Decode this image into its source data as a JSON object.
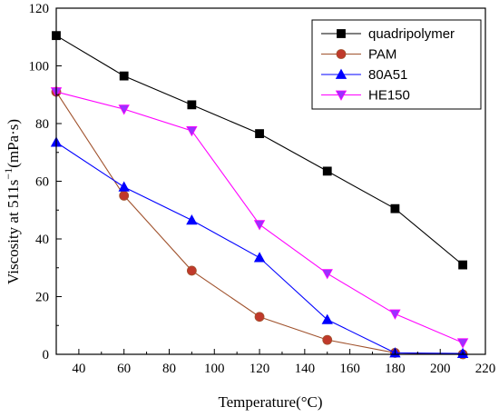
{
  "chart_data": {
    "type": "line",
    "title": "",
    "xlabel": "Temperature(°C)",
    "ylabel_main": "Viscosity at 511s",
    "ylabel_sup": "−1",
    "ylabel_tail": "(mPa·s)",
    "xlim": [
      30,
      220
    ],
    "ylim": [
      0,
      120
    ],
    "x_ticks": [
      40,
      60,
      80,
      100,
      120,
      140,
      160,
      180,
      200,
      220
    ],
    "y_ticks": [
      0,
      20,
      40,
      60,
      80,
      100,
      120
    ],
    "grid": false,
    "legend_position": "top-right",
    "series": [
      {
        "name": "quadripolymer",
        "color": "#000000",
        "marker": "square",
        "x": [
          30,
          60,
          90,
          120,
          150,
          180,
          210
        ],
        "y": [
          110.5,
          96.5,
          86.5,
          76.5,
          63.5,
          50.5,
          31.0
        ]
      },
      {
        "name": "PAM",
        "color": "#a0522d",
        "fill": "#c0392b",
        "marker": "circle",
        "x": [
          30,
          60,
          90,
          120,
          150,
          180,
          210
        ],
        "y": [
          91.0,
          55.0,
          29.0,
          13.0,
          5.0,
          0.5,
          0.0
        ]
      },
      {
        "name": "80A51",
        "color": "#0000ff",
        "marker": "triangle-up",
        "x": [
          30,
          60,
          90,
          120,
          150,
          180,
          210
        ],
        "y": [
          73.5,
          58.0,
          46.5,
          33.5,
          12.0,
          0.5,
          0.3
        ]
      },
      {
        "name": "HE150",
        "color": "#ff00ff",
        "fill": "#9b30ff",
        "marker": "triangle-down",
        "x": [
          30,
          60,
          90,
          120,
          150,
          180,
          210
        ],
        "y": [
          91.0,
          85.0,
          77.5,
          45.0,
          28.0,
          14.0,
          4.0
        ]
      }
    ]
  }
}
